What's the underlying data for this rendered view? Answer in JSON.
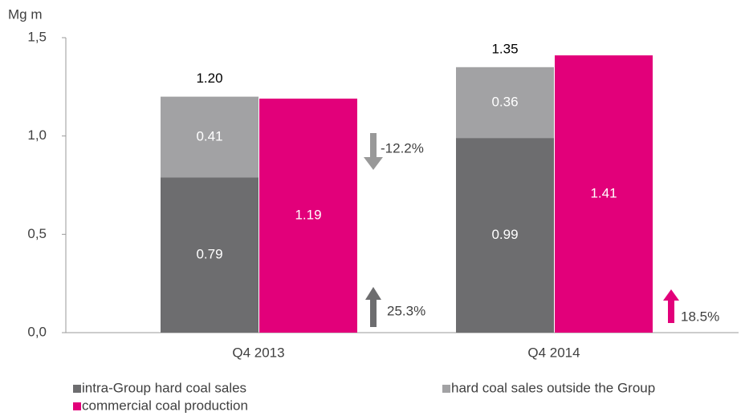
{
  "chart_data": {
    "type": "bar",
    "y_axis_label": "Mg m",
    "categories": [
      "Q4 2013",
      "Q4 2014"
    ],
    "ylim": [
      0,
      1.5
    ],
    "yticks": [
      {
        "value": 0,
        "label": "0,0"
      },
      {
        "value": 0.5,
        "label": "0,5"
      },
      {
        "value": 1,
        "label": "1,0"
      },
      {
        "value": 1.5,
        "label": "1,5"
      }
    ],
    "grid": false,
    "series": [
      {
        "name": "intra-Group hard coal sales",
        "color": "#6d6d6f",
        "values": [
          0.79,
          0.99
        ],
        "stack": "sales"
      },
      {
        "name": "hard coal sales outside the Group",
        "color": "#a2a2a4",
        "values": [
          0.41,
          0.36
        ],
        "stack": "sales"
      },
      {
        "name": "commercial coal production",
        "color": "#e2007a",
        "values": [
          1.19,
          1.41
        ],
        "stack": "production"
      }
    ],
    "totals": {
      "values": [
        1.2,
        1.35
      ],
      "value_labels": [
        "1.20",
        "1.35"
      ]
    },
    "annotations": [
      "-12.2%",
      "25.3%",
      "18.5%"
    ]
  }
}
